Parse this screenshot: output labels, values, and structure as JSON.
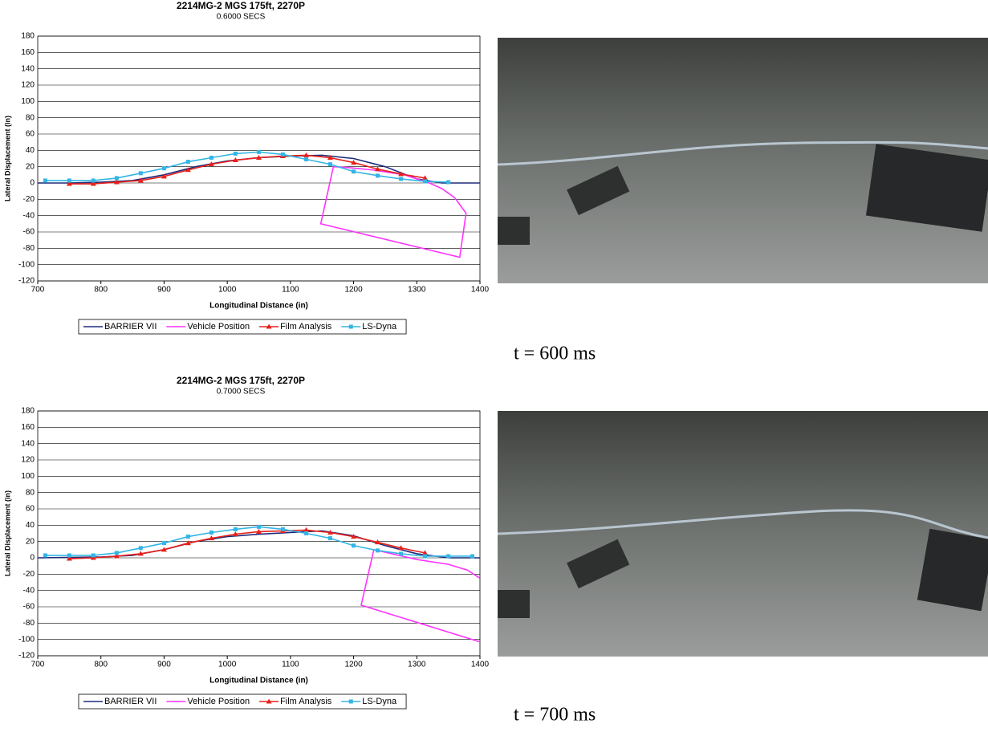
{
  "chart_data": [
    {
      "type": "line",
      "title": "2214MG-2 MGS 175ft, 2270P",
      "subtitle": "0.6000 SECS",
      "x_label": "Longitudinal Distance (in)",
      "y_label": "Lateral Displacement (in)",
      "xlim": [
        700,
        1400
      ],
      "xticks": [
        700,
        800,
        900,
        1000,
        1100,
        1200,
        1300,
        1400
      ],
      "ylim": [
        -120,
        180
      ],
      "yticks": [
        -120,
        -100,
        -80,
        -60,
        -40,
        -20,
        0,
        20,
        40,
        60,
        80,
        100,
        120,
        140,
        160,
        180
      ],
      "grid": true,
      "legend": "bottom",
      "series": [
        {
          "name": "BARRIER VII",
          "color": "#1f2a7a",
          "marker": null,
          "x": [
            700,
            750,
            800,
            850,
            900,
            950,
            1000,
            1050,
            1100,
            1150,
            1200,
            1250,
            1300,
            1340,
            1400
          ],
          "values": [
            0,
            0,
            1,
            3,
            10,
            20,
            27,
            31,
            33,
            34,
            30,
            20,
            5,
            0,
            0
          ]
        },
        {
          "name": "Vehicle Position",
          "color": "#ff33ff",
          "marker": null,
          "x": [
            1168,
            1148,
            1368,
            1378,
            1360,
            1340,
            1320,
            1280,
            1230,
            1190,
            1168
          ],
          "values": [
            20,
            -50,
            -91,
            -37,
            -18,
            -7,
            0,
            10,
            16,
            19,
            20
          ]
        },
        {
          "name": "Film Analysis",
          "color": "#e8201a",
          "marker": "triangle",
          "x": [
            750,
            788,
            825,
            863,
            900,
            938,
            975,
            1013,
            1050,
            1088,
            1125,
            1163,
            1200,
            1238,
            1275,
            1313
          ],
          "values": [
            -1,
            -1,
            1,
            3,
            8,
            16,
            23,
            28,
            31,
            33,
            34,
            31,
            25,
            17,
            11,
            6
          ]
        },
        {
          "name": "LS-Dyna",
          "color": "#33b5e5",
          "marker": "square",
          "x": [
            712,
            750,
            788,
            825,
            863,
            900,
            938,
            975,
            1013,
            1050,
            1088,
            1125,
            1163,
            1200,
            1238,
            1275,
            1313,
            1350
          ],
          "values": [
            3,
            3,
            3,
            6,
            12,
            18,
            26,
            31,
            36,
            38,
            35,
            29,
            23,
            14,
            9,
            5,
            2,
            1
          ]
        }
      ]
    },
    {
      "type": "line",
      "title": "2214MG-2 MGS 175ft, 2270P",
      "subtitle": "0.7000 SECS",
      "x_label": "Longitudinal Distance (in)",
      "y_label": "Lateral Displacement (in)",
      "xlim": [
        700,
        1400
      ],
      "xticks": [
        700,
        800,
        900,
        1000,
        1100,
        1200,
        1300,
        1400
      ],
      "ylim": [
        -120,
        180
      ],
      "yticks": [
        -120,
        -100,
        -80,
        -60,
        -40,
        -20,
        0,
        20,
        40,
        60,
        80,
        100,
        120,
        140,
        160,
        180
      ],
      "grid": true,
      "legend": "bottom",
      "series": [
        {
          "name": "BARRIER VII",
          "color": "#1f2a7a",
          "marker": null,
          "x": [
            700,
            800,
            850,
            900,
            950,
            1000,
            1050,
            1100,
            1150,
            1200,
            1250,
            1300,
            1350,
            1400
          ],
          "values": [
            0,
            1,
            3,
            10,
            20,
            26,
            29,
            31,
            33,
            27,
            15,
            5,
            0,
            0
          ]
        },
        {
          "name": "Vehicle Position",
          "color": "#ff33ff",
          "marker": null,
          "x": [
            1400,
            1380,
            1350,
            1300,
            1232,
            1212,
            1400
          ],
          "values": [
            -25,
            -15,
            -8,
            -2,
            10,
            -58,
            -103
          ]
        },
        {
          "name": "Film Analysis",
          "color": "#e8201a",
          "marker": "triangle",
          "x": [
            750,
            788,
            825,
            863,
            900,
            938,
            975,
            1013,
            1050,
            1088,
            1125,
            1163,
            1200,
            1238,
            1275,
            1313
          ],
          "values": [
            -1,
            0,
            2,
            5,
            10,
            18,
            24,
            29,
            32,
            33,
            34,
            31,
            26,
            19,
            12,
            6
          ]
        },
        {
          "name": "LS-Dyna",
          "color": "#33b5e5",
          "marker": "square",
          "x": [
            712,
            750,
            788,
            825,
            863,
            900,
            938,
            975,
            1013,
            1050,
            1088,
            1125,
            1163,
            1200,
            1238,
            1275,
            1313,
            1350,
            1388
          ],
          "values": [
            3,
            3,
            3,
            6,
            12,
            18,
            26,
            31,
            35,
            38,
            35,
            30,
            24,
            15,
            9,
            5,
            2,
            2,
            2
          ]
        }
      ]
    }
  ],
  "captions": [
    "t = 600 ms",
    "t = 700 ms"
  ]
}
